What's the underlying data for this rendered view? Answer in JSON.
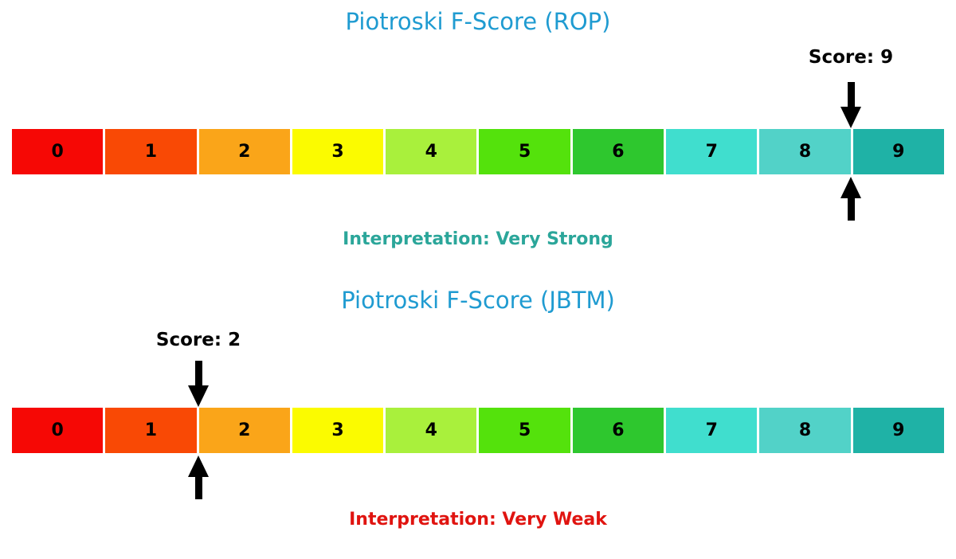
{
  "colors": {
    "background": "#FFFFFF",
    "title": "#1F9BD1",
    "arrow": "#000000",
    "score_text": "#000000"
  },
  "scale": {
    "labels": [
      "0",
      "1",
      "2",
      "3",
      "4",
      "5",
      "6",
      "7",
      "8",
      "9"
    ],
    "colors": [
      "#F60805",
      "#F94905",
      "#FAA519",
      "#FBFB00",
      "#A9F03C",
      "#54E20C",
      "#2EC72E",
      "#40DECE",
      "#52D2C8",
      "#1FB2A6"
    ]
  },
  "charts": [
    {
      "title": "Piotroski F-Score (ROP)",
      "score_label": "Score: 9",
      "score": 9,
      "interpretation": "Interpretation: Very Strong",
      "interpretation_color": "#2BA69A"
    },
    {
      "title": "Piotroski F-Score (JBTM)",
      "score_label": "Score: 2",
      "score": 2,
      "interpretation": "Interpretation: Very Weak",
      "interpretation_color": "#E01410"
    }
  ],
  "chart_data": [
    {
      "type": "bar",
      "subtype": "score-scale-indicator",
      "title": "Piotroski F-Score (ROP)",
      "categories": [
        0,
        1,
        2,
        3,
        4,
        5,
        6,
        7,
        8,
        9
      ],
      "values": [
        1,
        1,
        1,
        1,
        1,
        1,
        1,
        1,
        1,
        1
      ],
      "segment_colors": [
        "#F60805",
        "#F94905",
        "#FAA519",
        "#FBFB00",
        "#A9F03C",
        "#54E20C",
        "#2EC72E",
        "#40DECE",
        "#52D2C8",
        "#1FB2A6"
      ],
      "score": 9,
      "score_label": "Score: 9",
      "annotation": "Interpretation: Very Strong",
      "xlim": [
        0,
        10
      ],
      "xlabel": "",
      "ylabel": "",
      "grid": false,
      "legend": false
    },
    {
      "type": "bar",
      "subtype": "score-scale-indicator",
      "title": "Piotroski F-Score (JBTM)",
      "categories": [
        0,
        1,
        2,
        3,
        4,
        5,
        6,
        7,
        8,
        9
      ],
      "values": [
        1,
        1,
        1,
        1,
        1,
        1,
        1,
        1,
        1,
        1
      ],
      "segment_colors": [
        "#F60805",
        "#F94905",
        "#FAA519",
        "#FBFB00",
        "#A9F03C",
        "#54E20C",
        "#2EC72E",
        "#40DECE",
        "#52D2C8",
        "#1FB2A6"
      ],
      "score": 2,
      "score_label": "Score: 2",
      "annotation": "Interpretation: Very Weak",
      "xlim": [
        0,
        10
      ],
      "xlabel": "",
      "ylabel": "",
      "grid": false,
      "legend": false
    }
  ]
}
